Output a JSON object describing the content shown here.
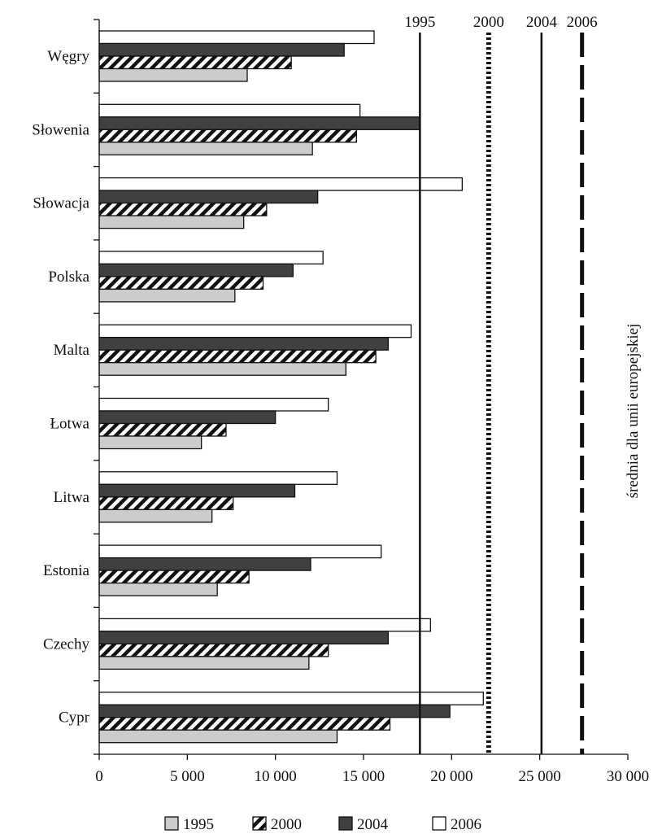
{
  "chart_data": {
    "type": "bar",
    "orientation": "horizontal",
    "categories": [
      "Węgry",
      "Słowenia",
      "Słowacja",
      "Polska",
      "Malta",
      "Łotwa",
      "Litwa",
      "Estonia",
      "Czechy",
      "Cypr"
    ],
    "series": [
      {
        "name": "1995",
        "color": "#cccccc",
        "pattern": "solid-light",
        "values": [
          8400,
          12100,
          8200,
          7700,
          14000,
          5800,
          6400,
          6700,
          11900,
          13500
        ]
      },
      {
        "name": "2000",
        "color": "#ffffff",
        "pattern": "diagonal-hatch",
        "values": [
          10900,
          14600,
          9500,
          9300,
          15700,
          7200,
          7600,
          8500,
          13000,
          16500
        ]
      },
      {
        "name": "2004",
        "color": "#404040",
        "pattern": "solid-dark",
        "values": [
          13900,
          18200,
          12400,
          11000,
          16400,
          10000,
          11100,
          12000,
          16400,
          19900
        ]
      },
      {
        "name": "2006",
        "color": "#ffffff",
        "pattern": "outline",
        "values": [
          15600,
          14800,
          20600,
          12700,
          17700,
          13000,
          13500,
          16000,
          18800,
          21800
        ]
      }
    ],
    "reference_lines": [
      {
        "label": "1995",
        "value": 18200,
        "style": "solid"
      },
      {
        "label": "2000",
        "value": 22100,
        "style": "dotted"
      },
      {
        "label": "2004",
        "value": 25100,
        "style": "solid"
      },
      {
        "label": "2006",
        "value": 27400,
        "style": "dashed"
      }
    ],
    "side_label": "średnia dla unii europejskiej",
    "x_ticks": [
      "0",
      "5 000",
      "10 000",
      "15 000",
      "20 000",
      "25 000",
      "30 000"
    ],
    "x_tick_values": [
      0,
      5000,
      10000,
      15000,
      20000,
      25000,
      30000
    ],
    "xlim": [
      0,
      30000
    ],
    "grid": false,
    "legend_position": "bottom"
  }
}
